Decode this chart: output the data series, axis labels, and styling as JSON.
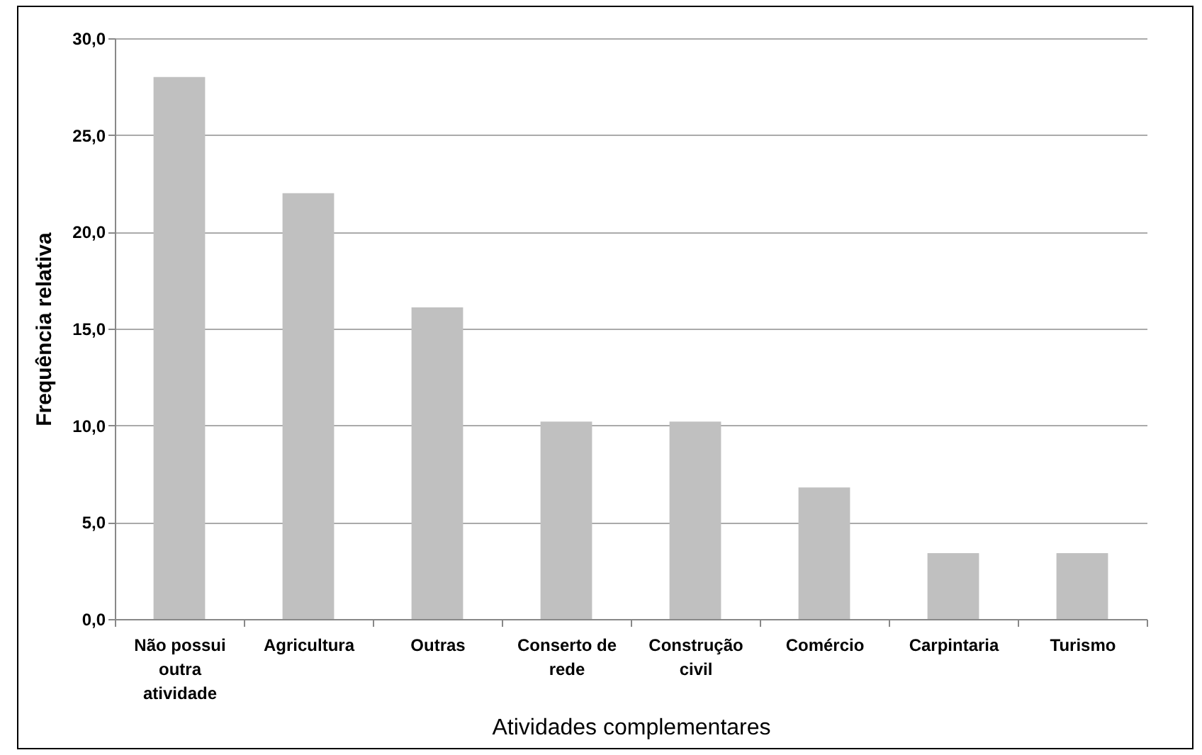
{
  "chart_data": {
    "type": "bar",
    "xlabel": "Atividades complementares",
    "ylabel": "Frequência relativa",
    "categories": [
      "Não possui outra atividade",
      "Agricultura",
      "Outras",
      "Conserto de rede",
      "Construção civil",
      "Comércio",
      "Carpintaria",
      "Turismo"
    ],
    "values": [
      28.0,
      22.0,
      16.1,
      10.2,
      10.2,
      6.8,
      3.4,
      3.4
    ],
    "color": "#c0c0c0",
    "ylim": [
      0,
      30
    ],
    "yticks": [
      {
        "value": 0,
        "label": "0,0"
      },
      {
        "value": 5,
        "label": "5,0"
      },
      {
        "value": 10,
        "label": "10,0"
      },
      {
        "value": 15,
        "label": "15,0"
      },
      {
        "value": 20,
        "label": "20,0"
      },
      {
        "value": 25,
        "label": "25,0"
      },
      {
        "value": 30,
        "label": "30,0"
      }
    ],
    "grid": "y"
  }
}
